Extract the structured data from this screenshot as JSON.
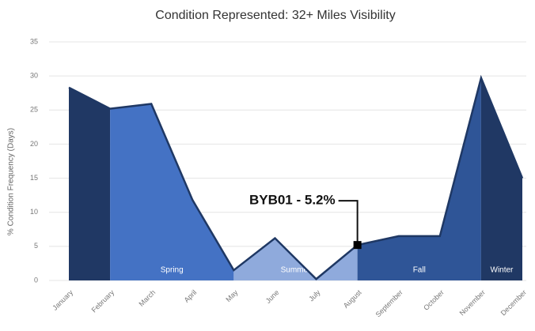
{
  "chart_data": {
    "type": "area",
    "title": "Condition Represented: 32+ Miles Visibility",
    "y_label": "% Condition Frequency (Days)",
    "categories": [
      "January",
      "February",
      "March",
      "April",
      "May",
      "June",
      "July",
      "August",
      "September",
      "October",
      "November",
      "December"
    ],
    "values": [
      28.3,
      25.2,
      25.9,
      11.8,
      1.5,
      6.2,
      0.2,
      5.2,
      6.5,
      6.5,
      29.7,
      15.0
    ],
    "line_color": "#1f3864",
    "ylim": [
      0,
      35
    ],
    "yticks": [
      0,
      5,
      10,
      15,
      20,
      25,
      30,
      35
    ],
    "grid": true,
    "segments": [
      {
        "start": "January",
        "end": "February",
        "color": "#203864"
      },
      {
        "name": "Spring",
        "start": "February",
        "end": "May",
        "color": "#4472c4"
      },
      {
        "name": "Summer",
        "start": "May",
        "end": "August",
        "color": "#8faadc"
      },
      {
        "name": "Fall",
        "start": "August",
        "end": "November",
        "color": "#2f5597"
      },
      {
        "name": "Winter",
        "start": "November",
        "end": "December",
        "color": "#203864"
      }
    ],
    "annotation": {
      "text": "BYB01 - 5.2%",
      "category": "August"
    }
  }
}
